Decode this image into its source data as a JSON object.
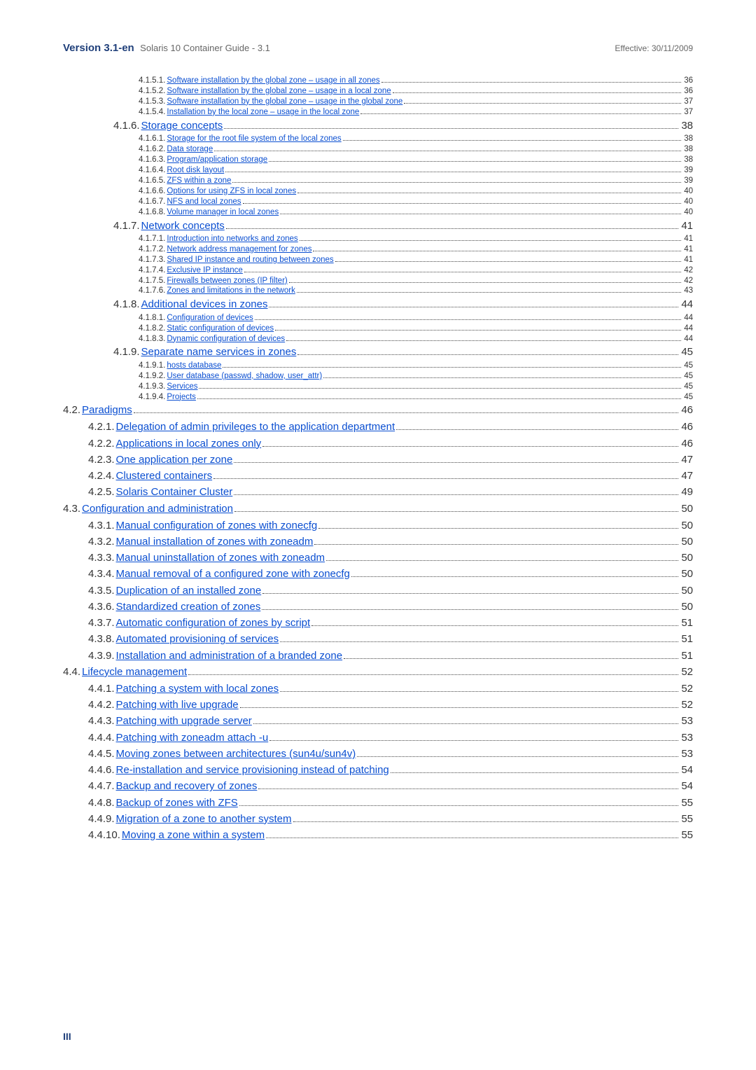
{
  "header": {
    "version": "Version 3.1-en",
    "subtitle": "Solaris 10 Container Guide - 3.1",
    "effective": "Effective: 30/11/2009"
  },
  "pageNumber": "III",
  "colors": {
    "link": "#0b4fd1",
    "headerBold": "#1f3f7a",
    "text": "#333333"
  },
  "toc": [
    {
      "level": 4,
      "num": "4.1.5.1.",
      "title": "Software installation by the global zone  – usage in all zones",
      "page": "36"
    },
    {
      "level": 4,
      "num": "4.1.5.2.",
      "title": "Software installation by the global zone – usage in a local zone",
      "page": "36"
    },
    {
      "level": 4,
      "num": "4.1.5.3.",
      "title": "Software installation by the global zone – usage in the global zone",
      "page": "37"
    },
    {
      "level": 4,
      "num": "4.1.5.4.",
      "title": "Installation by the local zone – usage in the local zone",
      "page": "37"
    },
    {
      "level": 3,
      "num": "4.1.6.",
      "title": "Storage concepts",
      "page": "38"
    },
    {
      "level": 4,
      "num": "4.1.6.1.",
      "title": "Storage for the root file system of the local zones",
      "page": "38"
    },
    {
      "level": 4,
      "num": "4.1.6.2.",
      "title": "Data storage",
      "page": "38"
    },
    {
      "level": 4,
      "num": "4.1.6.3.",
      "title": "Program/application storage",
      "page": "38"
    },
    {
      "level": 4,
      "num": "4.1.6.4.",
      "title": "Root disk layout",
      "page": "39"
    },
    {
      "level": 4,
      "num": "4.1.6.5.",
      "title": "ZFS within a zone",
      "page": "39"
    },
    {
      "level": 4,
      "num": "4.1.6.6.",
      "title": "Options for using ZFS in local zones",
      "page": "40"
    },
    {
      "level": 4,
      "num": "4.1.6.7.",
      "title": "NFS and local zones",
      "page": "40"
    },
    {
      "level": 4,
      "num": "4.1.6.8.",
      "title": "Volume manager in local zones",
      "page": "40"
    },
    {
      "level": 3,
      "num": "4.1.7.",
      "title": "Network concepts",
      "page": "41"
    },
    {
      "level": 4,
      "num": "4.1.7.1.",
      "title": "Introduction into networks and zones",
      "page": "41"
    },
    {
      "level": 4,
      "num": "4.1.7.2.",
      "title": "Network address management for zones",
      "page": "41"
    },
    {
      "level": 4,
      "num": "4.1.7.3.",
      "title": "Shared IP instance and routing between zones",
      "page": "41"
    },
    {
      "level": 4,
      "num": "4.1.7.4.",
      "title": "Exclusive IP instance",
      "page": "42"
    },
    {
      "level": 4,
      "num": "4.1.7.5.",
      "title": "Firewalls between zones (IP filter)",
      "page": "42"
    },
    {
      "level": 4,
      "num": "4.1.7.6.",
      "title": "Zones and limitations in the network",
      "page": "43"
    },
    {
      "level": 3,
      "num": "4.1.8.",
      "title": "Additional devices in zones",
      "page": "44"
    },
    {
      "level": 4,
      "num": "4.1.8.1.",
      "title": "Configuration of devices",
      "page": "44"
    },
    {
      "level": 4,
      "num": "4.1.8.2.",
      "title": "Static configuration of devices",
      "page": "44"
    },
    {
      "level": 4,
      "num": "4.1.8.3.",
      "title": "Dynamic configuration of devices",
      "page": "44"
    },
    {
      "level": 3,
      "num": "4.1.9.",
      "title": "Separate name services in zones",
      "page": "45"
    },
    {
      "level": 4,
      "num": "4.1.9.1.",
      "title": "hosts database",
      "page": "45"
    },
    {
      "level": 4,
      "num": "4.1.9.2.",
      "title": "User database (passwd, shadow, user_attr)",
      "page": "45"
    },
    {
      "level": 4,
      "num": "4.1.9.3.",
      "title": "Services",
      "page": "45"
    },
    {
      "level": 4,
      "num": "4.1.9.4.",
      "title": "Projects",
      "page": "45"
    },
    {
      "level": 1,
      "num": "4.2.",
      "title": "Paradigms",
      "page": "46"
    },
    {
      "level": 2,
      "num": "4.2.1.",
      "title": "Delegation of admin privileges to the application department",
      "page": "46"
    },
    {
      "level": 2,
      "num": "4.2.2.",
      "title": "Applications in local zones only",
      "page": "46"
    },
    {
      "level": 2,
      "num": "4.2.3.",
      "title": "One application per zone",
      "page": "47"
    },
    {
      "level": 2,
      "num": "4.2.4.",
      "title": "Clustered containers",
      "page": "47"
    },
    {
      "level": 2,
      "num": "4.2.5.",
      "title": "Solaris Container Cluster",
      "page": "49"
    },
    {
      "level": 1,
      "num": "4.3.",
      "title": "Configuration and administration",
      "page": "50"
    },
    {
      "level": 2,
      "num": "4.3.1.",
      "title": "Manual configuration of zones with zonecfg",
      "page": "50"
    },
    {
      "level": 2,
      "num": "4.3.2.",
      "title": "Manual installation of zones with zoneadm",
      "page": "50"
    },
    {
      "level": 2,
      "num": "4.3.3.",
      "title": "Manual uninstallation of zones with zoneadm",
      "page": "50"
    },
    {
      "level": 2,
      "num": "4.3.4.",
      "title": "Manual removal of a configured zone with zonecfg",
      "page": "50"
    },
    {
      "level": 2,
      "num": "4.3.5.",
      "title": "Duplication of an installed zone",
      "page": "50"
    },
    {
      "level": 2,
      "num": "4.3.6.",
      "title": "Standardized creation of zones",
      "page": "50"
    },
    {
      "level": 2,
      "num": "4.3.7.",
      "title": "Automatic configuration of zones by script",
      "page": "51"
    },
    {
      "level": 2,
      "num": "4.3.8.",
      "title": "Automated provisioning of services",
      "page": "51"
    },
    {
      "level": 2,
      "num": "4.3.9.",
      "title": "Installation and administration of a branded zone",
      "page": "51"
    },
    {
      "level": 1,
      "num": "4.4.",
      "title": "Lifecycle management",
      "page": "52"
    },
    {
      "level": 2,
      "num": "4.4.1.",
      "title": "Patching a system with local zones",
      "page": "52"
    },
    {
      "level": 2,
      "num": "4.4.2.",
      "title": "Patching with live upgrade",
      "page": "52"
    },
    {
      "level": 2,
      "num": "4.4.3.",
      "title": "Patching with upgrade server",
      "page": "53"
    },
    {
      "level": 2,
      "num": "4.4.4.",
      "title": "Patching with zoneadm attach -u",
      "page": "53"
    },
    {
      "level": 2,
      "num": "4.4.5.",
      "title": "Moving zones between architectures (sun4u/sun4v)",
      "page": "53"
    },
    {
      "level": 2,
      "num": "4.4.6.",
      "title": "Re-installation and service provisioning instead of patching",
      "page": "54"
    },
    {
      "level": 2,
      "num": "4.4.7.",
      "title": "Backup and recovery of zones",
      "page": "54"
    },
    {
      "level": 2,
      "num": "4.4.8.",
      "title": "Backup of zones with ZFS",
      "page": "55"
    },
    {
      "level": 2,
      "num": "4.4.9.",
      "title": "Migration of a zone to another system",
      "page": "55"
    },
    {
      "level": 2,
      "num": "4.4.10.",
      "title": "Moving a zone within a system",
      "page": "55"
    }
  ]
}
